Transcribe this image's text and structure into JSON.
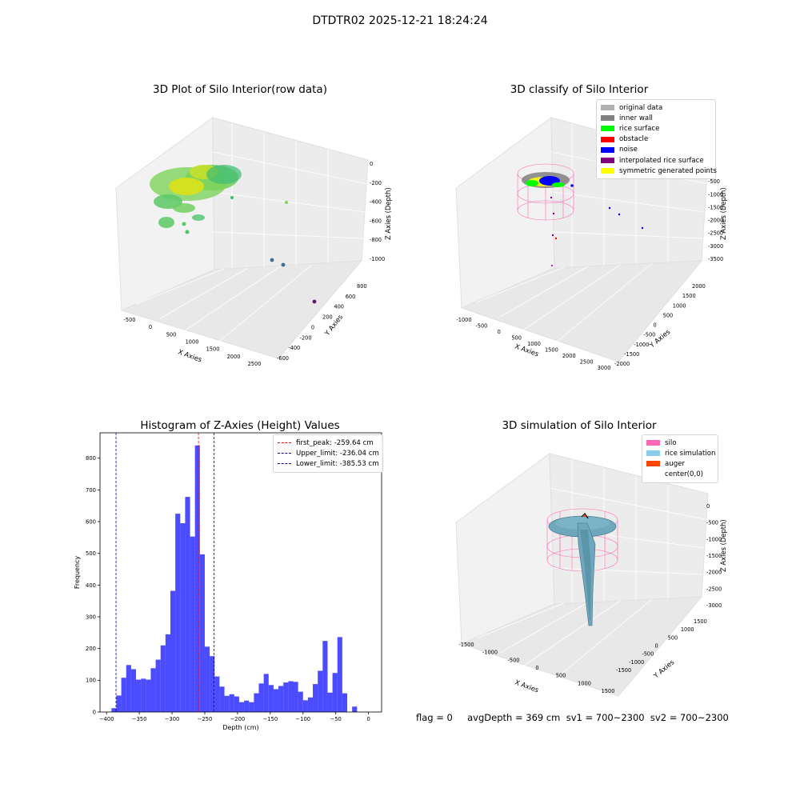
{
  "figure": {
    "suptitle": "DTDTR02 2025-12-21 18:24:24",
    "status_text": "flag = 0     avgDepth = 369 cm  sv1 = 700~2300  sv2 = 700~2300"
  },
  "plot_raw": {
    "title": "3D Plot of Silo Interior(row data)",
    "xlabel": "X Axies",
    "ylabel": "Y Axies",
    "zlabel": "Z Axies (Depth)",
    "xticks": [
      "-500",
      "0",
      "500",
      "1000",
      "1500",
      "2000",
      "2500"
    ],
    "yticks": [
      "-600",
      "-400",
      "-200",
      "0",
      "200",
      "400",
      "600",
      "800"
    ],
    "zticks": [
      "0",
      "-200",
      "-400",
      "-600",
      "-800",
      "-1000"
    ]
  },
  "plot_classify": {
    "title": "3D classify of Silo Interior",
    "xlabel": "X Axies",
    "ylabel": "Y Axies",
    "zlabel": "Z Axies (Depth)",
    "xticks": [
      "-1000",
      "-500",
      "0",
      "500",
      "1000",
      "1500",
      "2000",
      "2500",
      "3000"
    ],
    "yticks": [
      "-2000",
      "-1500",
      "-1000",
      "-500",
      "0",
      "500",
      "1000",
      "1500",
      "2000"
    ],
    "zticks": [
      "0",
      "-500",
      "-1000",
      "-1500",
      "-2000",
      "-2500",
      "-3000",
      "-3500"
    ],
    "legend": [
      {
        "label": "original data",
        "color": "#b0b0b0"
      },
      {
        "label": "inner wall",
        "color": "#808080"
      },
      {
        "label": "rice surface",
        "color": "#00ff00"
      },
      {
        "label": "obstacle",
        "color": "#ff0000"
      },
      {
        "label": "noise",
        "color": "#0000ff"
      },
      {
        "label": "interpolated rice surface",
        "color": "#800080"
      },
      {
        "label": "symmetric generated points",
        "color": "#ffff00"
      }
    ]
  },
  "plot_sim": {
    "title": "3D simulation of Silo Interior",
    "xlabel": "X Axies",
    "ylabel": "Y Axies",
    "zlabel": "Z Axies (Depth)",
    "xticks": [
      "-1500",
      "-1000",
      "-500",
      "0",
      "500",
      "1000",
      "1500"
    ],
    "yticks": [
      "-1500",
      "-1000",
      "-500",
      "0",
      "500",
      "1000",
      "1500"
    ],
    "zticks": [
      "0",
      "-500",
      "-1000",
      "-1500",
      "-2000",
      "-2500",
      "-3000"
    ],
    "legend": [
      {
        "label": "silo",
        "color": "#ff69b4"
      },
      {
        "label": "rice simulation",
        "color": "#87ceeb"
      },
      {
        "label": "auger",
        "color": "#ff4500"
      },
      {
        "label": "center(0,0)",
        "color": ""
      }
    ]
  },
  "chart_data": [
    {
      "type": "scatter",
      "title": "3D Plot of Silo Interior(row data)",
      "xlabel": "X Axies",
      "ylabel": "Y Axies",
      "zlabel": "Z Axies (Depth)",
      "xlim": [
        -700,
        2700
      ],
      "ylim": [
        -700,
        900
      ],
      "zlim": [
        -1100,
        0
      ]
    },
    {
      "type": "scatter",
      "title": "3D classify of Silo Interior",
      "xlabel": "X Axies",
      "ylabel": "Y Axies",
      "zlabel": "Z Axies (Depth)",
      "xlim": [
        -1100,
        3000
      ],
      "ylim": [
        -2000,
        2100
      ],
      "zlim": [
        -3800,
        0
      ],
      "series": [
        {
          "name": "original data"
        },
        {
          "name": "inner wall"
        },
        {
          "name": "rice surface"
        },
        {
          "name": "obstacle"
        },
        {
          "name": "noise"
        },
        {
          "name": "interpolated rice surface"
        },
        {
          "name": "symmetric generated points"
        }
      ]
    },
    {
      "type": "bar",
      "title": "Histogram of Z-Axies (Height) Values",
      "xlabel": "Depth (cm)",
      "ylabel": "Frequency",
      "xlim": [
        -410,
        20
      ],
      "ylim": [
        0,
        880
      ],
      "xticks": [
        -400,
        -350,
        -300,
        -250,
        -200,
        -150,
        -100,
        -50,
        0
      ],
      "yticks": [
        0,
        100,
        200,
        300,
        400,
        500,
        600,
        700,
        800
      ],
      "bin_start": -392.5,
      "bin_width": 7.5,
      "values": [
        12,
        52,
        108,
        148,
        135,
        102,
        105,
        102,
        138,
        165,
        210,
        245,
        382,
        625,
        595,
        678,
        553,
        840,
        497,
        206,
        176,
        112,
        80,
        51,
        56,
        49,
        31,
        36,
        31,
        59,
        90,
        120,
        85,
        72,
        82,
        93,
        97,
        95,
        64,
        37,
        46,
        88,
        130,
        224,
        61,
        123,
        236,
        59,
        0,
        17
      ],
      "color": "#0000ff",
      "reference_lines": [
        {
          "name": "first_peak",
          "label": "first_peak: -259.64 cm",
          "x": -259.64,
          "color": "#ff0000"
        },
        {
          "name": "Upper_limit",
          "label": "Upper_limit: -236.04 cm",
          "x": -236.04,
          "color": "#00008b"
        },
        {
          "name": "Lower_limit",
          "label": "Lower_limit: -385.53 cm",
          "x": -385.53,
          "color": "#00008b"
        }
      ]
    },
    {
      "type": "area",
      "title": "3D simulation of Silo Interior",
      "xlabel": "X Axies",
      "ylabel": "Y Axies",
      "zlabel": "Z Axies (Depth)",
      "xlim": [
        -1600,
        1600
      ],
      "ylim": [
        -1600,
        1600
      ],
      "zlim": [
        -3000,
        200
      ],
      "series": [
        {
          "name": "silo"
        },
        {
          "name": "rice simulation"
        },
        {
          "name": "auger"
        },
        {
          "name": "center(0,0)"
        }
      ]
    }
  ]
}
